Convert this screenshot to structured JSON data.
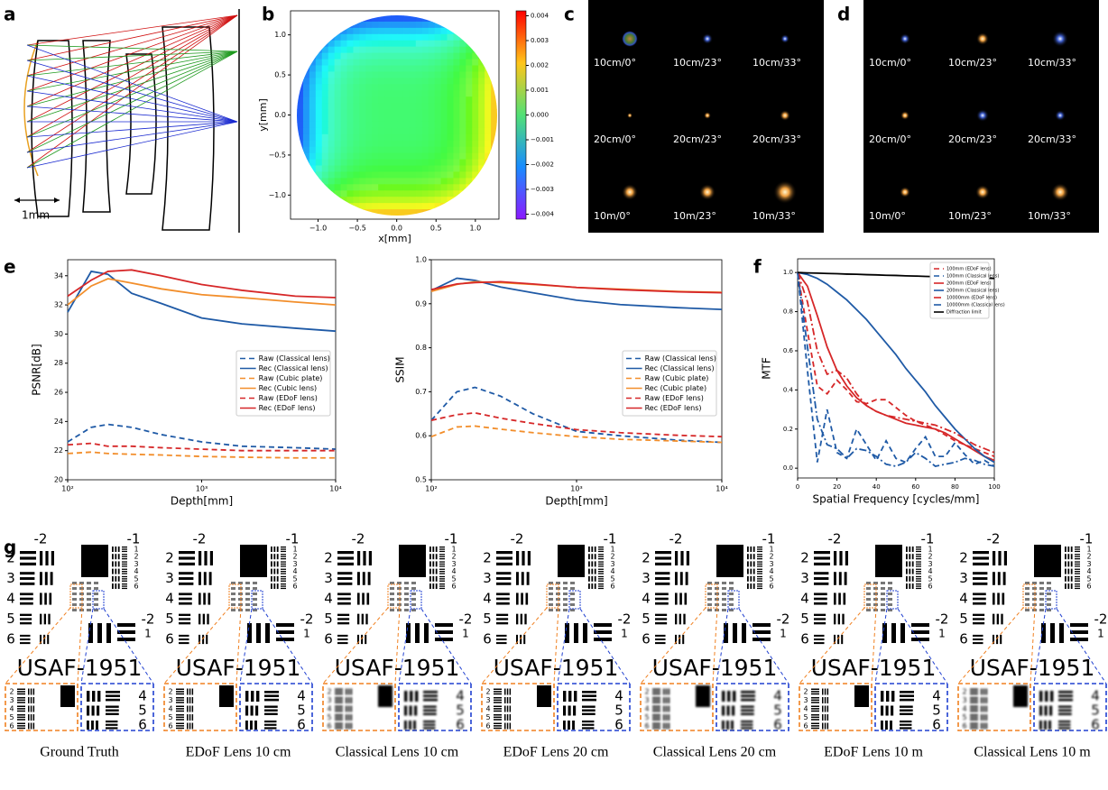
{
  "panel_labels": [
    "a",
    "b",
    "c",
    "d",
    "e",
    "f",
    "g"
  ],
  "lens": {
    "scale_label": "1mm"
  },
  "chart_data": [
    {
      "type": "heatmap",
      "xlabel": "x[mm]",
      "ylabel": "y[mm]",
      "xlim": [
        -1.35,
        1.3
      ],
      "ylim": [
        -1.3,
        1.3
      ],
      "xticks": [
        {
          "value": -1,
          "label": "−1.0"
        },
        {
          "value": -0.5,
          "label": "−0.5"
        },
        {
          "value": 0,
          "label": "0.0"
        },
        0.5,
        {
          "value": 1,
          "label": "1.0"
        }
      ],
      "yticks": [
        {
          "value": -1,
          "label": "−1.0"
        },
        {
          "value": -0.5,
          "label": "−0.5"
        },
        {
          "value": 0,
          "label": "0.0"
        },
        0.5,
        {
          "value": 1,
          "label": "1.0"
        }
      ],
      "clim": [
        -0.0042,
        0.0042
      ],
      "cticks": [
        0.004,
        0.003,
        0.002,
        0.001,
        {
          "value": 0,
          "label": "0.000"
        },
        {
          "value": -0.001,
          "label": "−0.001"
        },
        {
          "value": -0.002,
          "label": "−0.002"
        },
        {
          "value": -0.003,
          "label": "−0.003"
        },
        {
          "value": -0.004,
          "label": "−0.004"
        }
      ]
    },
    {
      "type": "line",
      "xscale": "log",
      "xlabel": "Depth[mm]",
      "ylabel": "PSNR[dB]",
      "x": [
        100,
        150,
        200,
        300,
        500,
        1000,
        2000,
        5000,
        10000
      ],
      "xlim": [
        100,
        10000
      ],
      "xticks": [
        {
          "value": 100,
          "label": "10²"
        },
        {
          "value": 1000,
          "label": "10³"
        },
        {
          "value": 10000,
          "label": "10⁴"
        }
      ],
      "ylim": [
        20,
        35.1
      ],
      "yticks": [
        20,
        22,
        24,
        26,
        28,
        30,
        32,
        34
      ],
      "legend": "center right",
      "series": [
        {
          "name": "Raw (Classical lens)",
          "color": "#1f5aa6",
          "style": "dashed",
          "values": [
            22.6,
            23.6,
            23.8,
            23.6,
            23.1,
            22.6,
            22.3,
            22.2,
            22.1
          ]
        },
        {
          "name": "Rec (Classical lens)",
          "color": "#1f5aa6",
          "style": "solid",
          "values": [
            31.5,
            34.3,
            34.1,
            32.8,
            32.1,
            31.1,
            30.7,
            30.4,
            30.2
          ]
        },
        {
          "name": "Raw (Cubic plate)",
          "color": "#f28e2b",
          "style": "dashed",
          "values": [
            21.8,
            21.9,
            21.8,
            21.75,
            21.7,
            21.6,
            21.55,
            21.5,
            21.5
          ]
        },
        {
          "name": "Rec (Cubic lens)",
          "color": "#f28e2b",
          "style": "solid",
          "values": [
            32.0,
            33.3,
            33.8,
            33.5,
            33.1,
            32.7,
            32.5,
            32.2,
            32.0
          ]
        },
        {
          "name": "Raw (EDoF lens)",
          "color": "#d62728",
          "style": "dashed",
          "values": [
            22.4,
            22.5,
            22.3,
            22.3,
            22.2,
            22.1,
            22.0,
            22.0,
            22.0
          ]
        },
        {
          "name": "Rec (EDoF lens)",
          "color": "#d62728",
          "style": "solid",
          "values": [
            32.6,
            33.7,
            34.3,
            34.4,
            34.0,
            33.4,
            33.0,
            32.6,
            32.5
          ]
        }
      ]
    },
    {
      "type": "line",
      "xscale": "log",
      "xlabel": "Depth[mm]",
      "ylabel": "SSIM",
      "x": [
        100,
        150,
        200,
        300,
        500,
        1000,
        2000,
        5000,
        10000
      ],
      "xlim": [
        100,
        10000
      ],
      "xticks": [
        {
          "value": 100,
          "label": "10²"
        },
        {
          "value": 1000,
          "label": "10³"
        },
        {
          "value": 10000,
          "label": "10⁴"
        }
      ],
      "ylim": [
        0.5,
        1.0
      ],
      "yticks": [
        0.5,
        0.6,
        0.7,
        0.8,
        0.9,
        {
          "value": 1,
          "label": "1.0"
        }
      ],
      "legend": "center right",
      "series": [
        {
          "name": "Raw (Classical lens)",
          "color": "#1f5aa6",
          "style": "dashed",
          "values": [
            0.635,
            0.7,
            0.71,
            0.69,
            0.65,
            0.61,
            0.6,
            0.59,
            0.585
          ]
        },
        {
          "name": "Rec (Classical lens)",
          "color": "#1f5aa6",
          "style": "solid",
          "values": [
            0.93,
            0.958,
            0.953,
            0.938,
            0.925,
            0.908,
            0.898,
            0.891,
            0.887
          ]
        },
        {
          "name": "Raw (Cubic plate)",
          "color": "#f28e2b",
          "style": "dashed",
          "values": [
            0.598,
            0.62,
            0.622,
            0.615,
            0.607,
            0.598,
            0.592,
            0.588,
            0.585
          ]
        },
        {
          "name": "Rec (Cubic plate)",
          "color": "#f28e2b",
          "style": "solid",
          "values": [
            0.928,
            0.944,
            0.95,
            0.948,
            0.944,
            0.937,
            0.933,
            0.928,
            0.926
          ]
        },
        {
          "name": "Raw (EDoF lens)",
          "color": "#d62728",
          "style": "dashed",
          "values": [
            0.635,
            0.648,
            0.652,
            0.64,
            0.628,
            0.614,
            0.607,
            0.601,
            0.598
          ]
        },
        {
          "name": "Rec (EDoF lens)",
          "color": "#d62728",
          "style": "solid",
          "values": [
            0.932,
            0.945,
            0.948,
            0.95,
            0.945,
            0.937,
            0.932,
            0.927,
            0.925
          ]
        }
      ]
    },
    {
      "type": "line",
      "xlabel": "Spatial Frequency [cycles/mm]",
      "ylabel": "MTF",
      "x": [
        0,
        5,
        10,
        15,
        20,
        25,
        30,
        35,
        40,
        45,
        50,
        55,
        60,
        65,
        70,
        75,
        80,
        85,
        90,
        95,
        100
      ],
      "xlim": [
        0,
        100
      ],
      "xticks": [
        0,
        20,
        40,
        60,
        80,
        100
      ],
      "ylim": [
        -0.05,
        1.07
      ],
      "yticks": [
        {
          "value": 0,
          "label": "0.0"
        },
        0.2,
        0.4,
        0.6,
        0.8,
        {
          "value": 1,
          "label": "1.0"
        }
      ],
      "legend": "upper right",
      "series": [
        {
          "name": "100mm (EDoF lens)",
          "color": "#d62728",
          "style": "dashed",
          "values": [
            1,
            0.7,
            0.42,
            0.38,
            0.45,
            0.4,
            0.34,
            0.33,
            0.35,
            0.35,
            0.31,
            0.27,
            0.24,
            0.22,
            0.2,
            0.17,
            0.14,
            0.12,
            0.1,
            0.08,
            0.06
          ]
        },
        {
          "name": "100mm (Classical lens)",
          "color": "#1f5aa6",
          "style": "dashed",
          "values": [
            1,
            0.5,
            0.03,
            0.3,
            0.08,
            0.05,
            0.2,
            0.12,
            0.04,
            0.14,
            0.05,
            0.03,
            0.1,
            0.16,
            0.06,
            0.06,
            0.13,
            0.07,
            0.02,
            0.04,
            0.01
          ]
        },
        {
          "name": "200mm (EDoF lens)",
          "color": "#d62728",
          "style": "solid",
          "values": [
            1,
            0.93,
            0.78,
            0.62,
            0.5,
            0.42,
            0.36,
            0.32,
            0.29,
            0.27,
            0.25,
            0.23,
            0.22,
            0.21,
            0.2,
            0.18,
            0.15,
            0.12,
            0.09,
            0.06,
            0.04
          ]
        },
        {
          "name": "200mm (Classical lens)",
          "color": "#1f5aa6",
          "style": "solid",
          "values": [
            1,
            0.99,
            0.97,
            0.94,
            0.9,
            0.86,
            0.81,
            0.76,
            0.7,
            0.64,
            0.58,
            0.51,
            0.45,
            0.39,
            0.32,
            0.26,
            0.2,
            0.15,
            0.1,
            0.06,
            0.03
          ]
        },
        {
          "name": "10000mm (EDoF lens)",
          "color": "#d62728",
          "style": "dashdot",
          "values": [
            1,
            0.85,
            0.6,
            0.48,
            0.5,
            0.46,
            0.38,
            0.32,
            0.29,
            0.27,
            0.26,
            0.25,
            0.24,
            0.23,
            0.22,
            0.2,
            0.18,
            0.15,
            0.12,
            0.1,
            0.08
          ]
        },
        {
          "name": "10000mm (Classical lens)",
          "color": "#1f5aa6",
          "style": "dashdot",
          "values": [
            1,
            0.62,
            0.25,
            0.12,
            0.1,
            0.05,
            0.1,
            0.09,
            0.06,
            0.02,
            0.01,
            0.03,
            0.08,
            0.05,
            0.01,
            0.02,
            0.03,
            0.05,
            0.04,
            0.02,
            0.01
          ]
        },
        {
          "name": "Diffraction limit",
          "color": "#000000",
          "style": "solid",
          "values": [
            1,
            0.998,
            0.997,
            0.995,
            0.994,
            0.992,
            0.991,
            0.989,
            0.988,
            0.986,
            0.985,
            0.983,
            0.982,
            0.98,
            0.979,
            0.977,
            0.976,
            0.974,
            0.973,
            0.971,
            0.97
          ]
        }
      ]
    }
  ],
  "psf_panels": [
    {
      "labels": [
        "10cm/0°",
        "10cm/23°",
        "10cm/33°",
        "20cm/0°",
        "20cm/23°",
        "20cm/33°",
        "10m/0°",
        "10m/23°",
        "10m/33°"
      ]
    },
    {
      "labels": [
        "10cm/0°",
        "10cm/23°",
        "10cm/33°",
        "20cm/0°",
        "20cm/23°",
        "20cm/33°",
        "10m/0°",
        "10m/23°",
        "10m/33°"
      ]
    }
  ],
  "usaf": {
    "top_left_group": "-2",
    "top_right_group": "-1",
    "lower_group": "-2",
    "lower_element": "1",
    "elements_left": [
      "2",
      "3",
      "4",
      "5",
      "6"
    ],
    "elements_right": [
      "1",
      "2",
      "3",
      "4",
      "5",
      "6"
    ],
    "target_name": "USAF-1951",
    "zoom_left": [
      "2",
      "3",
      "4",
      "5",
      "6"
    ],
    "zoom_right": [
      "4",
      "5",
      "6"
    ],
    "captions": [
      "Ground Truth",
      "EDoF Lens 10 cm",
      "Classical Lens 10 cm",
      "EDoF Lens 20 cm",
      "Classical Lens 20 cm",
      "EDoF Lens 10 m",
      "Classical Lens 10 m"
    ]
  }
}
